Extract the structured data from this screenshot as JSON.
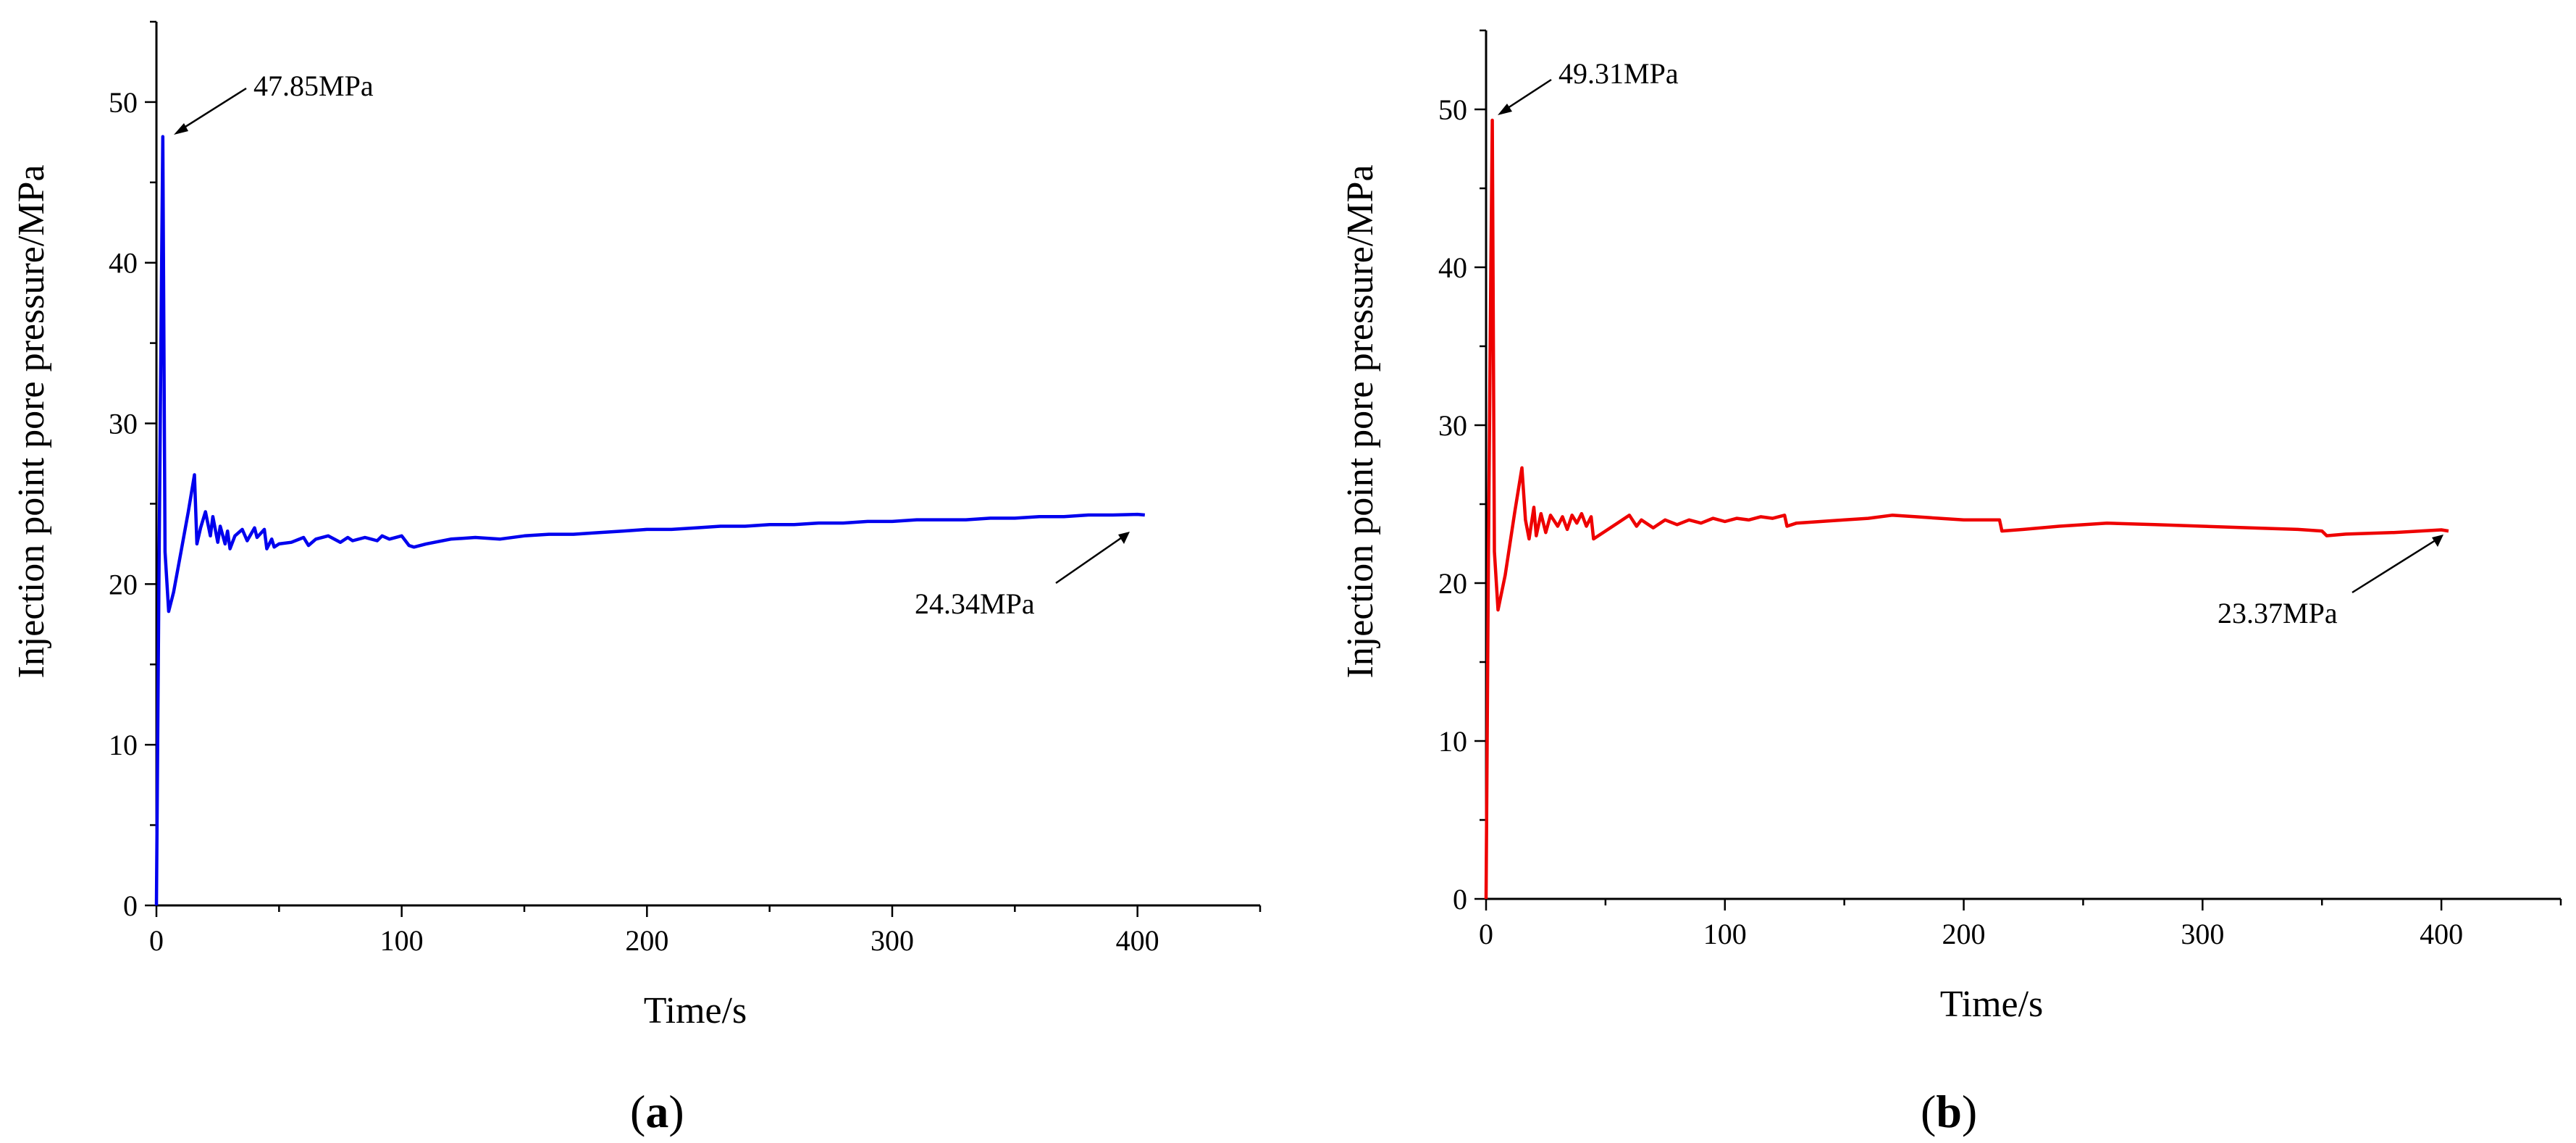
{
  "chart_data": [
    {
      "type": "line",
      "panel_label": "a",
      "xlabel": "Time/s",
      "ylabel": "Injection point pore pressure/MPa",
      "xlim": [
        0,
        450
      ],
      "ylim": [
        0,
        55
      ],
      "xticks": [
        0,
        100,
        200,
        300,
        400
      ],
      "yticks": [
        0,
        10,
        20,
        30,
        40,
        50
      ],
      "grid": false,
      "series_color": "#0000ee",
      "series": [
        {
          "x": [
            0,
            1,
            2,
            2.6,
            3.5,
            5,
            7,
            10,
            13,
            15.5,
            16.5,
            18,
            20,
            22,
            23,
            25,
            26,
            28,
            29,
            30,
            32,
            35,
            37,
            40,
            41,
            44,
            45,
            47,
            48,
            50,
            55,
            60,
            62,
            65,
            70,
            75,
            78,
            80,
            85,
            90,
            92,
            95,
            100,
            103,
            105,
            110,
            120,
            130,
            140,
            150,
            160,
            170,
            180,
            190,
            200,
            210,
            220,
            230,
            240,
            250,
            260,
            270,
            280,
            290,
            300,
            310,
            320,
            330,
            340,
            350,
            360,
            370,
            380,
            390,
            400,
            403
          ],
          "y": [
            0,
            20,
            38,
            47.85,
            22,
            18.3,
            19.5,
            22,
            24.5,
            26.8,
            22.5,
            23.5,
            24.5,
            23,
            24.2,
            22.6,
            23.6,
            22.5,
            23.3,
            22.2,
            23.0,
            23.4,
            22.7,
            23.5,
            22.9,
            23.4,
            22.2,
            22.8,
            22.3,
            22.5,
            22.6,
            22.9,
            22.4,
            22.8,
            23.0,
            22.6,
            22.9,
            22.7,
            22.9,
            22.7,
            23.0,
            22.8,
            23.0,
            22.4,
            22.3,
            22.5,
            22.8,
            22.9,
            22.8,
            23.0,
            23.1,
            23.1,
            23.2,
            23.3,
            23.4,
            23.4,
            23.5,
            23.6,
            23.6,
            23.7,
            23.7,
            23.8,
            23.8,
            23.9,
            23.9,
            24.0,
            24.0,
            24.0,
            24.1,
            24.1,
            24.2,
            24.2,
            24.3,
            24.3,
            24.34,
            24.3
          ]
        }
      ],
      "annotations": [
        {
          "text": "47.85MPa",
          "x": 2.6,
          "y": 47.85
        },
        {
          "text": "24.34MPa",
          "x": 400,
          "y": 24.34
        }
      ]
    },
    {
      "type": "line",
      "panel_label": "b",
      "xlabel": "Time/s",
      "ylabel": "Injection point pore pressure/MPa",
      "xlim": [
        0,
        450
      ],
      "ylim": [
        0,
        55
      ],
      "xticks": [
        0,
        100,
        200,
        300,
        400
      ],
      "yticks": [
        0,
        10,
        20,
        30,
        40,
        50
      ],
      "grid": false,
      "series_color": "#ee0000",
      "series": [
        {
          "x": [
            0,
            1,
            2,
            2.6,
            3.5,
            5,
            8,
            12,
            15,
            16.5,
            18,
            20,
            21,
            23,
            25,
            27,
            30,
            32,
            34,
            36,
            38,
            40,
            42,
            44,
            45,
            50,
            55,
            60,
            63,
            65,
            70,
            75,
            80,
            85,
            90,
            95,
            100,
            105,
            110,
            115,
            120,
            125,
            126,
            130,
            140,
            150,
            160,
            170,
            180,
            190,
            200,
            210,
            215,
            216,
            225,
            240,
            260,
            280,
            300,
            320,
            340,
            350,
            352,
            360,
            380,
            400,
            403
          ],
          "y": [
            0,
            22,
            40,
            49.31,
            22,
            18.3,
            20.5,
            24.5,
            27.3,
            24,
            22.8,
            24.8,
            23,
            24.4,
            23.2,
            24.3,
            23.6,
            24.2,
            23.4,
            24.3,
            23.8,
            24.4,
            23.6,
            24.2,
            22.8,
            23.3,
            23.8,
            24.3,
            23.6,
            24.0,
            23.5,
            24.0,
            23.7,
            24.0,
            23.8,
            24.1,
            23.9,
            24.1,
            24.0,
            24.2,
            24.1,
            24.3,
            23.6,
            23.8,
            23.9,
            24.0,
            24.1,
            24.3,
            24.2,
            24.1,
            24.0,
            24.0,
            24.0,
            23.3,
            23.4,
            23.6,
            23.8,
            23.7,
            23.6,
            23.5,
            23.4,
            23.3,
            23.0,
            23.1,
            23.2,
            23.37,
            23.3
          ]
        }
      ],
      "annotations": [
        {
          "text": "49.31MPa",
          "x": 2.6,
          "y": 49.31
        },
        {
          "text": "23.37MPa",
          "x": 400,
          "y": 23.37
        }
      ]
    }
  ]
}
